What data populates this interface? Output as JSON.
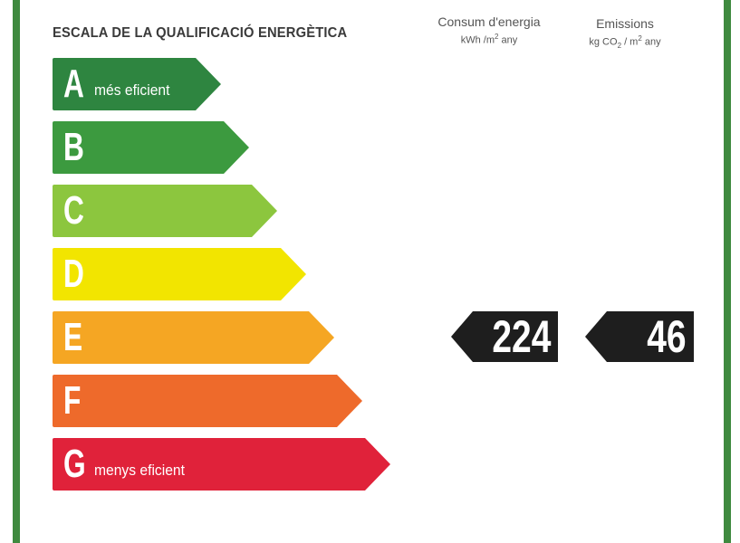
{
  "title": "ESCALA DE LA QUALIFICACIÓ ENERGÈTICA",
  "columns": {
    "consum": {
      "title": "Consum d'energia",
      "unit_prefix": "kWh /m",
      "unit_exp": "2",
      "unit_suffix": " any"
    },
    "emissions": {
      "title": "Emissions",
      "unit_prefix": "kg CO",
      "unit_sub": "2",
      "unit_mid": " / m",
      "unit_exp": "2",
      "unit_suffix": " any"
    }
  },
  "classes": [
    {
      "letter": "A",
      "label": "més eficient",
      "color": "#2e8540"
    },
    {
      "letter": "B",
      "label": "",
      "color": "#3c9a3f"
    },
    {
      "letter": "C",
      "label": "",
      "color": "#8cc63e"
    },
    {
      "letter": "D",
      "label": "",
      "color": "#f2e500"
    },
    {
      "letter": "E",
      "label": "",
      "color": "#f5a623"
    },
    {
      "letter": "F",
      "label": "",
      "color": "#ee6a2b"
    },
    {
      "letter": "G",
      "label": "menys eficient",
      "color": "#e0223a"
    }
  ],
  "rating": {
    "class": "E",
    "consum_value": "224",
    "emissions_value": "46"
  },
  "frame_color": "#3f8a3f"
}
